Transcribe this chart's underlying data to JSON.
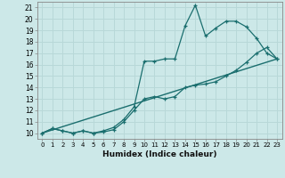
{
  "xlabel": "Humidex (Indice chaleur)",
  "bg_color": "#cce8e8",
  "grid_color": "#b0d4d4",
  "line_color": "#1a6e6e",
  "xlim": [
    -0.5,
    23.5
  ],
  "ylim": [
    9.5,
    21.5
  ],
  "xticks": [
    0,
    1,
    2,
    3,
    4,
    5,
    6,
    7,
    8,
    9,
    10,
    11,
    12,
    13,
    14,
    15,
    16,
    17,
    18,
    19,
    20,
    21,
    22,
    23
  ],
  "yticks": [
    10,
    11,
    12,
    13,
    14,
    15,
    16,
    17,
    18,
    19,
    20,
    21
  ],
  "line1_x": [
    0,
    23
  ],
  "line1_y": [
    10.0,
    16.5
  ],
  "line2_x": [
    0,
    1,
    2,
    3,
    4,
    5,
    6,
    7,
    8,
    9,
    10,
    11,
    12,
    13,
    14,
    15,
    16,
    17,
    18,
    19,
    20,
    21,
    22,
    23
  ],
  "line2_y": [
    10,
    10.4,
    10.2,
    10.0,
    10.2,
    10.0,
    10.1,
    10.3,
    11.0,
    12.0,
    13.0,
    13.2,
    13.0,
    13.2,
    14.0,
    14.2,
    14.3,
    14.5,
    15.0,
    15.5,
    16.2,
    17.0,
    17.5,
    16.5
  ],
  "line3_x": [
    0,
    1,
    2,
    3,
    4,
    5,
    6,
    7,
    8,
    9,
    10,
    11,
    12,
    13,
    14,
    15,
    16,
    17,
    18,
    19,
    20,
    21,
    22,
    23
  ],
  "line3_y": [
    10,
    10.4,
    10.2,
    10.0,
    10.2,
    10.0,
    10.2,
    10.5,
    11.2,
    12.3,
    16.3,
    16.3,
    16.5,
    16.5,
    19.4,
    21.2,
    18.5,
    19.2,
    19.8,
    19.8,
    19.3,
    18.3,
    17.0,
    16.5
  ]
}
